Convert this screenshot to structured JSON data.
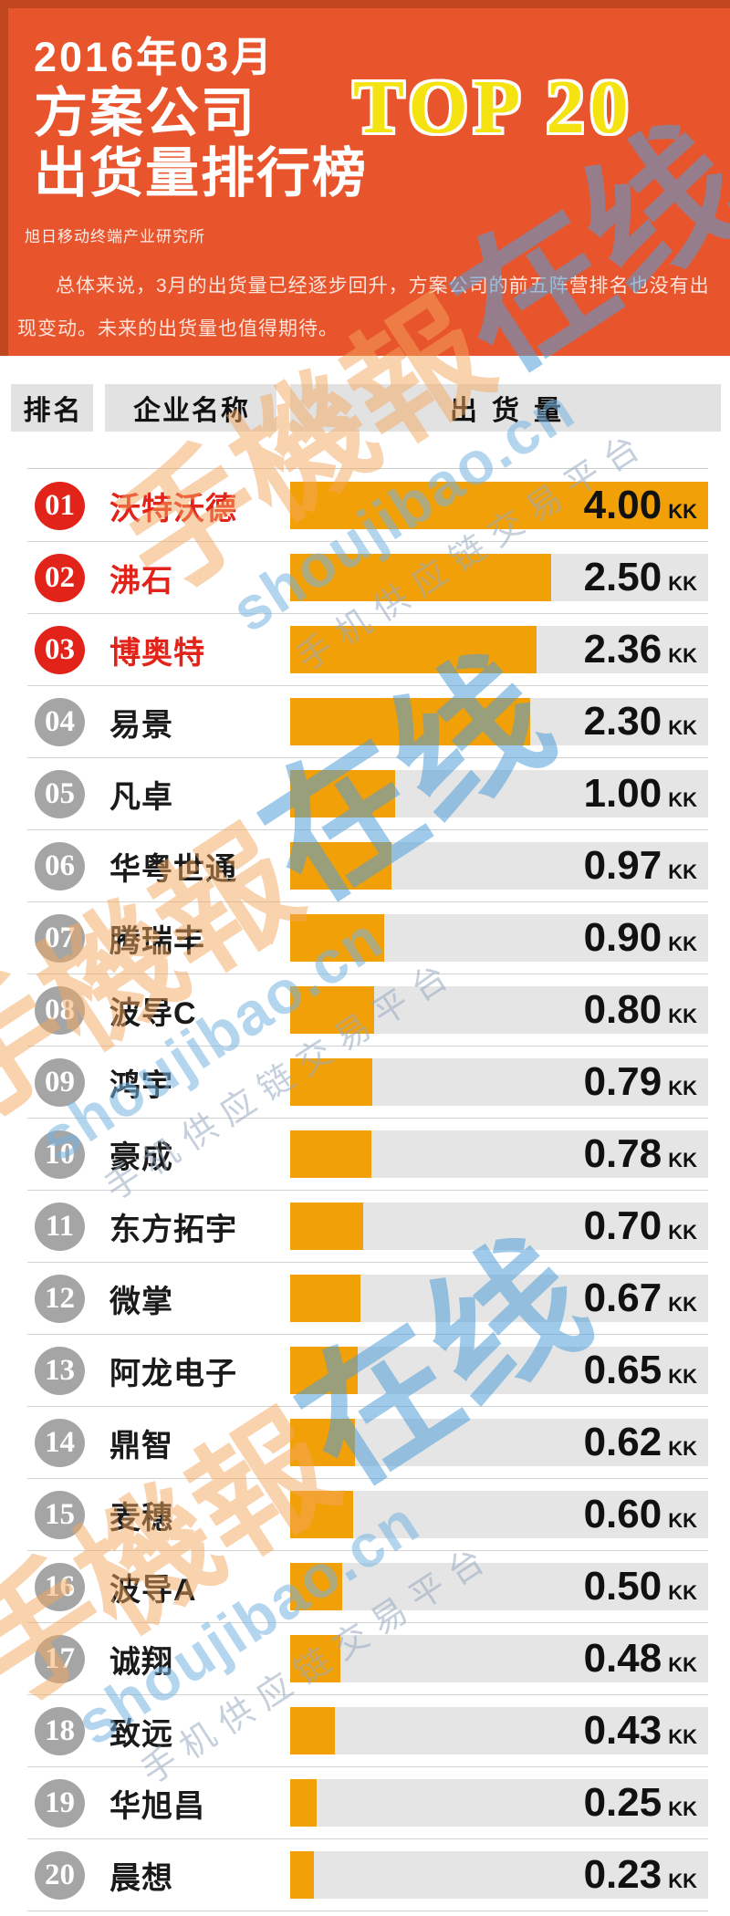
{
  "hero": {
    "date_line": "2016年03月",
    "title_line1": "方案公司",
    "title_line2": "出货量排行榜",
    "top_badge": "TOP 20",
    "org": "旭日移动终端产业研究所",
    "summary": "总体来说，3月的出货量已经逐步回升，方案公司的前五阵营排名也没有出现变动。未来的出货量也值得期待。"
  },
  "table_header": {
    "rank": "排名",
    "company": "企业名称",
    "shipment": "出货量"
  },
  "chart_data": {
    "type": "bar",
    "orientation": "horizontal",
    "title": "2016年03月 方案公司出货量排行榜 TOP 20",
    "unit": "KK",
    "xlim": [
      0,
      4.0
    ],
    "grid": false,
    "legend": "none",
    "highlight_top": 3,
    "bar_color": "#F2A007",
    "track_color": "#E5E5E5",
    "categories": [
      "沃特沃德",
      "沸石",
      "博奥特",
      "易景",
      "凡卓",
      "华粤世通",
      "腾瑞丰",
      "波导C",
      "鸿宇",
      "豪成",
      "东方拓宇",
      "微掌",
      "阿龙电子",
      "鼎智",
      "麦穗",
      "波导A",
      "诚翔",
      "致远",
      "华旭昌",
      "晨想"
    ],
    "values": [
      4.0,
      2.5,
      2.36,
      2.3,
      1.0,
      0.97,
      0.9,
      0.8,
      0.79,
      0.78,
      0.7,
      0.67,
      0.65,
      0.62,
      0.6,
      0.5,
      0.48,
      0.43,
      0.25,
      0.23
    ]
  },
  "watermark": {
    "brand": "手機報",
    "word": "在线",
    "domain": "shoujibao.cn",
    "tagline": "手机供应链交易平台"
  },
  "colors": {
    "hero_bg": "#E8552D",
    "hero_edge": "#C0461F",
    "accent_red": "#E2231A",
    "badge_gray": "#A5A5A5",
    "bar_orange": "#F2A007",
    "top_badge_yellow": "#F5E311"
  }
}
